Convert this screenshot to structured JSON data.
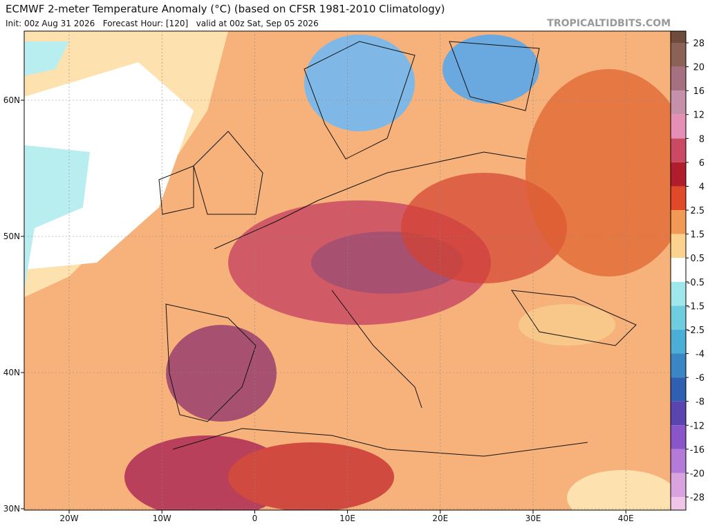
{
  "header": {
    "title": "ECMWF 2-meter Temperature Anomaly (°C) (based on CFSR 1981-2010 Climatology)",
    "subtitle": "Init: 00z Aug 31 2026   Forecast Hour: [120]   valid at 00z Sat, Sep 05 2026",
    "brand": "TROPICALTIDBITS.COM"
  },
  "map": {
    "lat_labels": [
      "60N",
      "50N",
      "40N",
      "30N"
    ],
    "lon_labels": [
      "20W",
      "10W",
      "0",
      "10E",
      "20E",
      "30E",
      "40E"
    ]
  },
  "colorbar": {
    "levels": [
      28,
      20,
      16,
      12,
      8,
      6,
      4,
      2.5,
      1.5,
      0.5,
      -0.5,
      -1.5,
      -2.5,
      -4,
      -6,
      -8,
      -12,
      -16,
      -20,
      -28
    ],
    "colors": [
      "#6e4c3c",
      "#8c6257",
      "#a57080",
      "#c490aa",
      "#e58fb6",
      "#c94a62",
      "#b01e2e",
      "#e04a28",
      "#f29a55",
      "#fbd38e",
      "#ffffff",
      "#9ee8ec",
      "#6fcde0",
      "#4aaed6",
      "#3a86c4",
      "#2f5fb0",
      "#5a45b0",
      "#8a55c8",
      "#b37ad8",
      "#d9a3e0",
      "#efc6ea"
    ]
  }
}
